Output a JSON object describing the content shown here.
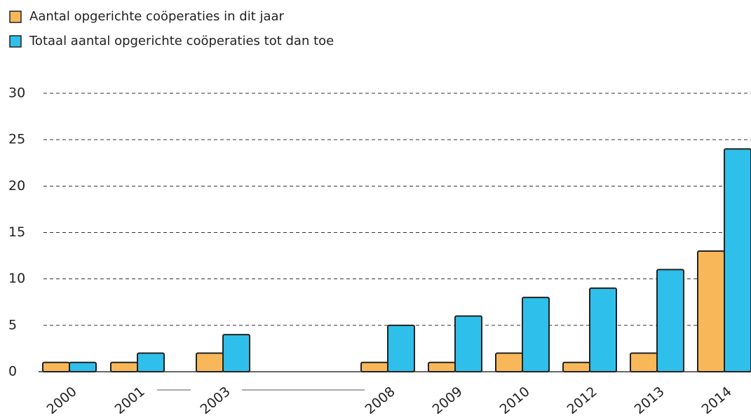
{
  "chart_data": {
    "type": "bar",
    "categories": [
      "2000",
      "2001",
      "2003",
      "2008",
      "2009",
      "2010",
      "2012",
      "2013",
      "2014"
    ],
    "series": [
      {
        "name": "Aantal opgerichte coöperaties in dit jaar",
        "color": "#f8b85a",
        "values": [
          1,
          1,
          2,
          1,
          1,
          2,
          1,
          2,
          13
        ]
      },
      {
        "name": "Totaal aantal opgerichte coöperaties tot dan toe",
        "color": "#2ec0ea",
        "values": [
          1,
          2,
          4,
          5,
          6,
          8,
          9,
          11,
          24
        ]
      }
    ],
    "ylim": [
      0,
      30
    ],
    "yticks": [
      0,
      5,
      10,
      15,
      20,
      25,
      30
    ],
    "grid": true
  }
}
